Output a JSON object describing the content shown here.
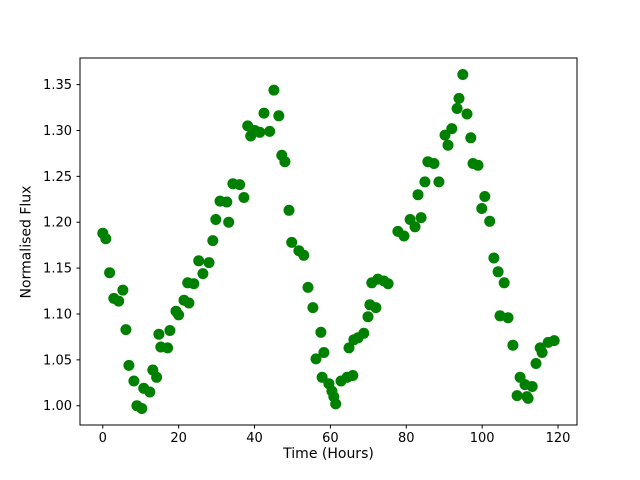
{
  "figure": {
    "background": "#ffffff",
    "axes_edge_color": "#000000",
    "tick_color": "#000000"
  },
  "chart_data": {
    "type": "scatter",
    "title": "",
    "xlabel": "Time (Hours)",
    "ylabel": "Normalised Flux",
    "xlim": [
      -6,
      125
    ],
    "ylim": [
      0.979,
      1.379
    ],
    "grid": false,
    "legend": null,
    "xticks": {
      "values": [
        0,
        20,
        40,
        60,
        80,
        100,
        120
      ],
      "labels": [
        "0",
        "20",
        "40",
        "60",
        "80",
        "100",
        "120"
      ]
    },
    "yticks": {
      "values": [
        1.0,
        1.05,
        1.1,
        1.15,
        1.2,
        1.25,
        1.3,
        1.35
      ],
      "labels": [
        "1.00",
        "1.05",
        "1.10",
        "1.15",
        "1.20",
        "1.25",
        "1.30",
        "1.35"
      ]
    },
    "marker": {
      "shape": "circle",
      "color": "#008000",
      "radius_px": 5.5
    },
    "series_name": "normalised-flux-vs-time",
    "points": [
      [
        0.0,
        1.188
      ],
      [
        0.8,
        1.182
      ],
      [
        1.8,
        1.145
      ],
      [
        2.9,
        1.117
      ],
      [
        4.2,
        1.114
      ],
      [
        5.3,
        1.126
      ],
      [
        6.1,
        1.083
      ],
      [
        6.9,
        1.044
      ],
      [
        8.2,
        1.027
      ],
      [
        9.0,
        1.0
      ],
      [
        10.3,
        0.997
      ],
      [
        10.8,
        1.019
      ],
      [
        12.4,
        1.015
      ],
      [
        13.2,
        1.039
      ],
      [
        14.2,
        1.031
      ],
      [
        14.8,
        1.078
      ],
      [
        15.3,
        1.064
      ],
      [
        17.1,
        1.063
      ],
      [
        17.7,
        1.082
      ],
      [
        19.3,
        1.103
      ],
      [
        20.0,
        1.099
      ],
      [
        21.4,
        1.115
      ],
      [
        22.4,
        1.134
      ],
      [
        22.7,
        1.112
      ],
      [
        24.0,
        1.133
      ],
      [
        25.3,
        1.158
      ],
      [
        26.4,
        1.144
      ],
      [
        28.0,
        1.156
      ],
      [
        29.0,
        1.18
      ],
      [
        29.8,
        1.203
      ],
      [
        30.9,
        1.223
      ],
      [
        32.7,
        1.222
      ],
      [
        33.2,
        1.2
      ],
      [
        34.3,
        1.242
      ],
      [
        36.1,
        1.241
      ],
      [
        37.2,
        1.227
      ],
      [
        38.2,
        1.305
      ],
      [
        39.0,
        1.294
      ],
      [
        40.1,
        1.3
      ],
      [
        41.4,
        1.298
      ],
      [
        42.5,
        1.319
      ],
      [
        44.0,
        1.299
      ],
      [
        45.1,
        1.344
      ],
      [
        46.4,
        1.316
      ],
      [
        47.2,
        1.273
      ],
      [
        48.0,
        1.266
      ],
      [
        49.1,
        1.213
      ],
      [
        49.8,
        1.178
      ],
      [
        51.7,
        1.169
      ],
      [
        53.0,
        1.164
      ],
      [
        54.1,
        1.129
      ],
      [
        55.4,
        1.107
      ],
      [
        56.2,
        1.051
      ],
      [
        57.5,
        1.08
      ],
      [
        57.8,
        1.031
      ],
      [
        58.3,
        1.058
      ],
      [
        59.6,
        1.024
      ],
      [
        60.4,
        1.016
      ],
      [
        60.9,
        1.01
      ],
      [
        61.4,
        1.002
      ],
      [
        62.8,
        1.027
      ],
      [
        64.4,
        1.031
      ],
      [
        64.9,
        1.063
      ],
      [
        65.9,
        1.033
      ],
      [
        66.2,
        1.072
      ],
      [
        67.3,
        1.074
      ],
      [
        68.8,
        1.079
      ],
      [
        69.9,
        1.097
      ],
      [
        70.4,
        1.11
      ],
      [
        70.9,
        1.134
      ],
      [
        72.0,
        1.107
      ],
      [
        72.5,
        1.138
      ],
      [
        74.1,
        1.136
      ],
      [
        75.2,
        1.133
      ],
      [
        77.8,
        1.19
      ],
      [
        79.4,
        1.185
      ],
      [
        81.0,
        1.203
      ],
      [
        82.3,
        1.195
      ],
      [
        83.1,
        1.23
      ],
      [
        83.9,
        1.205
      ],
      [
        84.9,
        1.244
      ],
      [
        85.7,
        1.266
      ],
      [
        87.3,
        1.264
      ],
      [
        88.6,
        1.244
      ],
      [
        90.2,
        1.295
      ],
      [
        91.0,
        1.284
      ],
      [
        92.0,
        1.302
      ],
      [
        93.4,
        1.324
      ],
      [
        93.9,
        1.335
      ],
      [
        94.9,
        1.361
      ],
      [
        96.0,
        1.318
      ],
      [
        97.0,
        1.292
      ],
      [
        97.6,
        1.264
      ],
      [
        98.9,
        1.262
      ],
      [
        99.9,
        1.215
      ],
      [
        100.7,
        1.228
      ],
      [
        102.0,
        1.201
      ],
      [
        103.1,
        1.161
      ],
      [
        104.2,
        1.146
      ],
      [
        104.7,
        1.098
      ],
      [
        105.8,
        1.134
      ],
      [
        106.8,
        1.096
      ],
      [
        108.1,
        1.066
      ],
      [
        109.2,
        1.011
      ],
      [
        110.0,
        1.031
      ],
      [
        111.3,
        1.023
      ],
      [
        111.8,
        1.01
      ],
      [
        112.1,
        1.008
      ],
      [
        113.2,
        1.021
      ],
      [
        114.2,
        1.046
      ],
      [
        115.3,
        1.063
      ],
      [
        115.8,
        1.058
      ],
      [
        117.4,
        1.069
      ],
      [
        119.0,
        1.071
      ]
    ]
  }
}
